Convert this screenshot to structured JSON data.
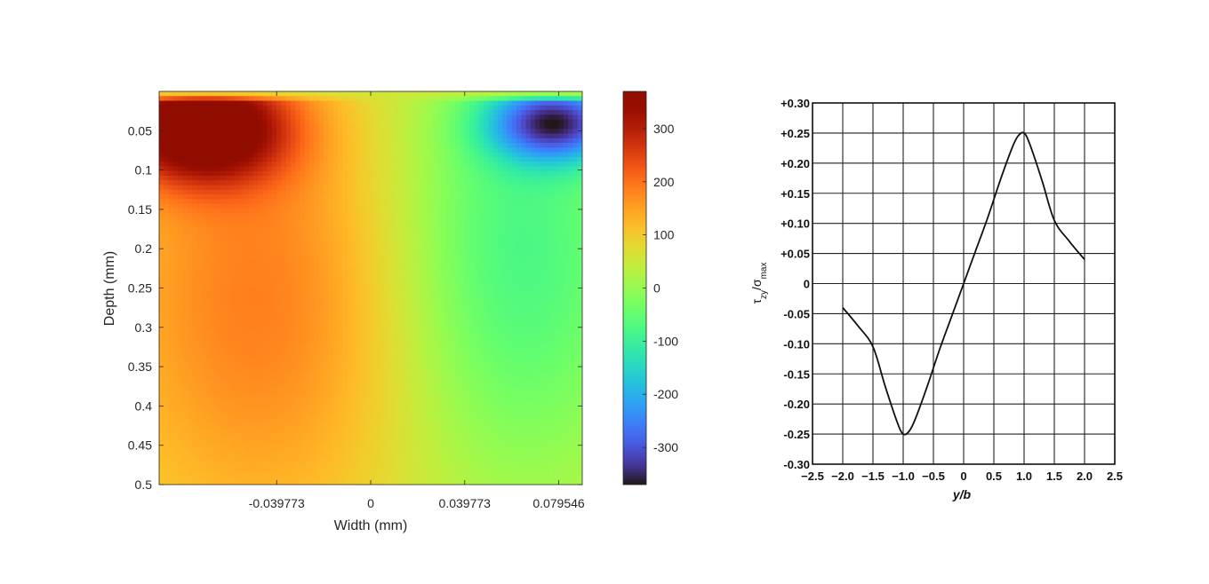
{
  "chart_data": [
    {
      "type": "heatmap",
      "xlabel": "Width (mm)",
      "ylabel": "Depth (mm)",
      "xlim": [
        -0.0895,
        0.0895
      ],
      "ylim": [
        0.0,
        0.5
      ],
      "y_reversed": true,
      "x_ticks": [
        -0.039773,
        0,
        0.039773,
        0.079546
      ],
      "x_tick_labels": [
        "-0.039773",
        "0",
        "0.039773",
        "0.079546"
      ],
      "y_ticks": [
        0.05,
        0.1,
        0.15,
        0.2,
        0.25,
        0.3,
        0.35,
        0.4,
        0.45,
        0.5
      ],
      "y_tick_labels": [
        "0.05",
        "0.1",
        "0.15",
        "0.2",
        "0.25",
        "0.3",
        "0.35",
        "0.4",
        "0.45",
        "0.5"
      ],
      "colorbar": {
        "colormap": "turbo",
        "range": [
          -370,
          370
        ],
        "ticks": [
          300,
          200,
          100,
          0,
          -100,
          -200,
          -300
        ],
        "tick_labels": [
          "300",
          "200",
          "100",
          "0",
          "-100",
          "-200",
          "-300"
        ]
      },
      "field": {
        "peak_positive": {
          "x": -0.072,
          "y": 0.045,
          "value": 370
        },
        "peak_negative": {
          "x": 0.078,
          "y": 0.04,
          "value": -370
        }
      }
    },
    {
      "type": "line",
      "xlabel": "y/b",
      "ylabel": "τzy/σmax",
      "xlim": [
        -2.5,
        2.5
      ],
      "ylim": [
        -0.3,
        0.3
      ],
      "grid": true,
      "x_ticks": [
        -2.5,
        -2.0,
        -1.5,
        -1.0,
        -0.5,
        0,
        0.5,
        1.0,
        1.5,
        2.0,
        2.5
      ],
      "x_tick_labels": [
        "−2.5",
        "−2.0",
        "−1.5",
        "−1.0",
        "−0.5",
        "0",
        "0.5",
        "1.0",
        "1.5",
        "2.0",
        "2.5"
      ],
      "y_ticks": [
        0.3,
        0.25,
        0.2,
        0.15,
        0.1,
        0.05,
        0,
        -0.05,
        -0.1,
        -0.15,
        -0.2,
        -0.25,
        -0.3
      ],
      "y_tick_labels": [
        "+0.30",
        "+0.25",
        "+0.20",
        "+0.15",
        "+0.10",
        "+0.05",
        "0",
        "-0.05",
        "-0.10",
        "-0.15",
        "-0.20",
        "-0.25",
        "-0.30"
      ],
      "series": [
        {
          "x": [
            -2.0,
            -1.75,
            -1.5,
            -1.3,
            -1.1,
            -1.0,
            -0.9,
            -0.8,
            -0.6,
            -0.4,
            -0.2,
            0,
            0.2,
            0.4,
            0.6,
            0.8,
            0.9,
            1.0,
            1.1,
            1.3,
            1.5,
            1.75,
            2.0
          ],
          "y": [
            -0.04,
            -0.07,
            -0.105,
            -0.17,
            -0.23,
            -0.25,
            -0.245,
            -0.225,
            -0.17,
            -0.11,
            -0.055,
            0.0,
            0.055,
            0.11,
            0.17,
            0.225,
            0.245,
            0.25,
            0.23,
            0.17,
            0.105,
            0.07,
            0.04
          ]
        }
      ]
    }
  ],
  "right_ylabel_parts": {
    "tau": "τ",
    "tau_sub": "zy",
    "slash": "/",
    "sigma": "σ",
    "sigma_sub": "max"
  }
}
